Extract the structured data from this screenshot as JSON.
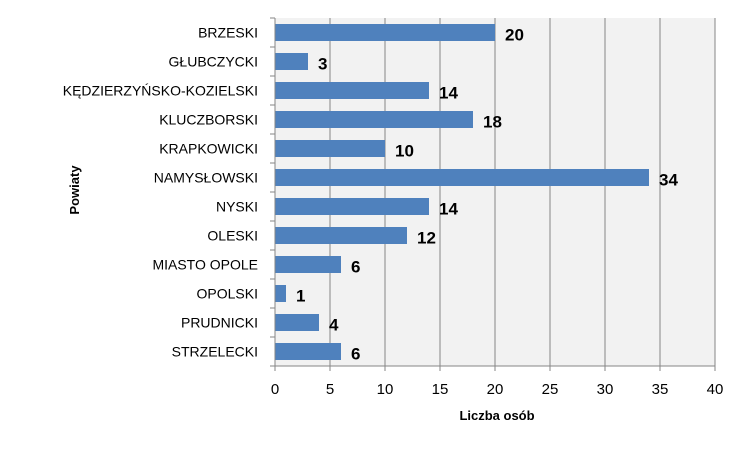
{
  "chart_data": {
    "type": "bar",
    "orientation": "horizontal",
    "categories": [
      "BRZESKI",
      "GŁUBCZYCKI",
      "KĘDZIERZYŃSKO-KOZIELSKI",
      "KLUCZBORSKI",
      "KRAPKOWICKI",
      "NAMYSŁOWSKI",
      "NYSKI",
      "OLESKI",
      "MIASTO OPOLE",
      "OPOLSKI",
      "PRUDNICKI",
      "STRZELECKI"
    ],
    "values": [
      20,
      3,
      14,
      18,
      10,
      34,
      14,
      12,
      6,
      1,
      4,
      6
    ],
    "xlabel": "Liczba osób",
    "ylabel": "Powiaty",
    "xlim": [
      0,
      40
    ],
    "xticks": [
      0,
      5,
      10,
      15,
      20,
      25,
      30,
      35,
      40
    ],
    "grid": true,
    "legend": "none",
    "bar_color": "#4f81bd",
    "plot_background": "#f2f2f2",
    "grid_color": "#868686"
  }
}
